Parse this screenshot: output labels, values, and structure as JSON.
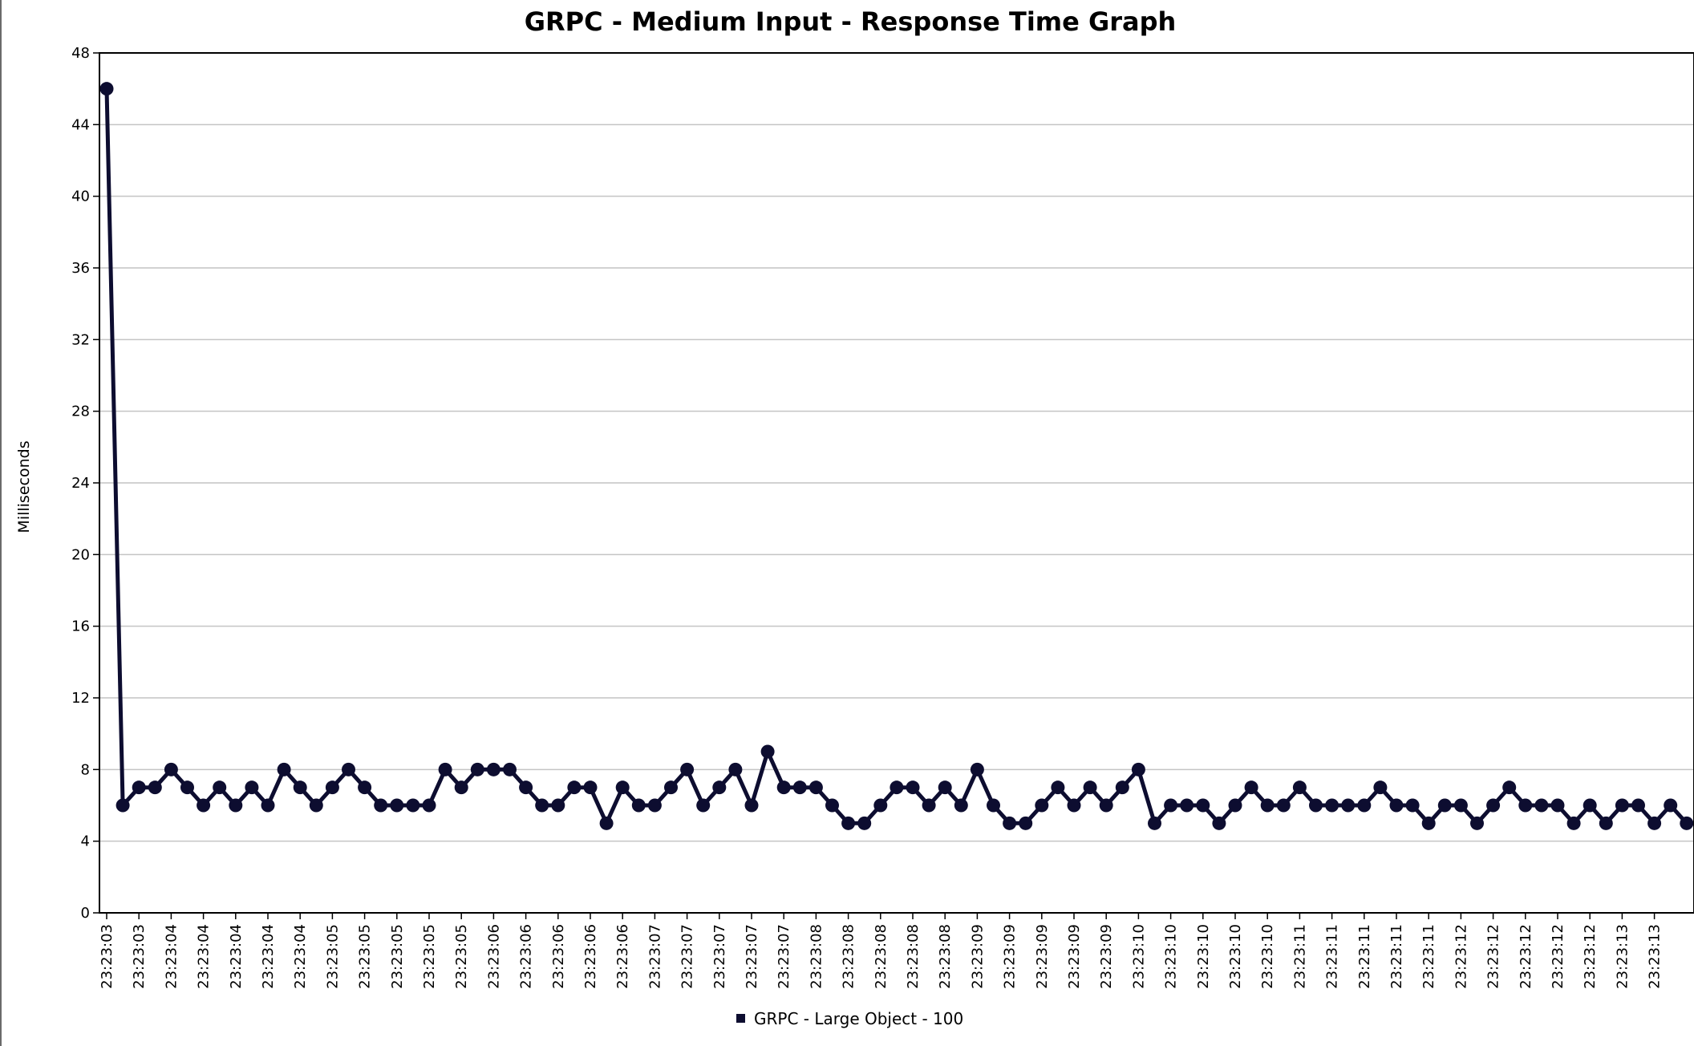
{
  "chart_data": {
    "type": "line",
    "title": "GRPC - Medium Input - Response Time Graph",
    "ylabel": "Milliseconds",
    "xlabel": "",
    "ylim": [
      0,
      48
    ],
    "yticks": [
      0,
      4,
      8,
      12,
      16,
      20,
      24,
      28,
      32,
      36,
      40,
      44,
      48
    ],
    "grid": true,
    "legend_position": "bottom-center",
    "x_tick_labels": [
      "23:23:03",
      "23:23:03",
      "23:23:04",
      "23:23:04",
      "23:23:04",
      "23:23:04",
      "23:23:04",
      "23:23:05",
      "23:23:05",
      "23:23:05",
      "23:23:05",
      "23:23:05",
      "23:23:06",
      "23:23:06",
      "23:23:06",
      "23:23:06",
      "23:23:06",
      "23:23:07",
      "23:23:07",
      "23:23:07",
      "23:23:07",
      "23:23:07",
      "23:23:08",
      "23:23:08",
      "23:23:08",
      "23:23:08",
      "23:23:08",
      "23:23:09",
      "23:23:09",
      "23:23:09",
      "23:23:09",
      "23:23:09",
      "23:23:10",
      "23:23:10",
      "23:23:10",
      "23:23:10",
      "23:23:10",
      "23:23:11",
      "23:23:11",
      "23:23:11",
      "23:23:11",
      "23:23:11",
      "23:23:12",
      "23:23:12",
      "23:23:12",
      "23:23:12",
      "23:23:12",
      "23:23:13",
      "23:23:13"
    ],
    "series": [
      {
        "name": "GRPC - Large Object - 100",
        "color": "#0d0d30",
        "values": [
          46,
          6,
          7,
          7,
          8,
          7,
          6,
          7,
          6,
          7,
          6,
          8,
          7,
          6,
          7,
          8,
          7,
          6,
          6,
          6,
          6,
          8,
          7,
          8,
          8,
          8,
          7,
          6,
          6,
          7,
          7,
          5,
          7,
          6,
          6,
          7,
          8,
          6,
          7,
          8,
          6,
          9,
          7,
          7,
          7,
          6,
          5,
          5,
          6,
          7,
          7,
          6,
          7,
          6,
          8,
          6,
          5,
          5,
          6,
          7,
          6,
          7,
          6,
          7,
          8,
          5,
          6,
          6,
          6,
          5,
          6,
          7,
          6,
          6,
          7,
          6,
          6,
          6,
          6,
          7,
          6,
          6,
          5,
          6,
          6,
          5,
          6,
          7,
          6,
          6,
          6,
          5,
          6,
          5,
          6,
          6,
          5,
          6,
          5
        ]
      }
    ]
  }
}
